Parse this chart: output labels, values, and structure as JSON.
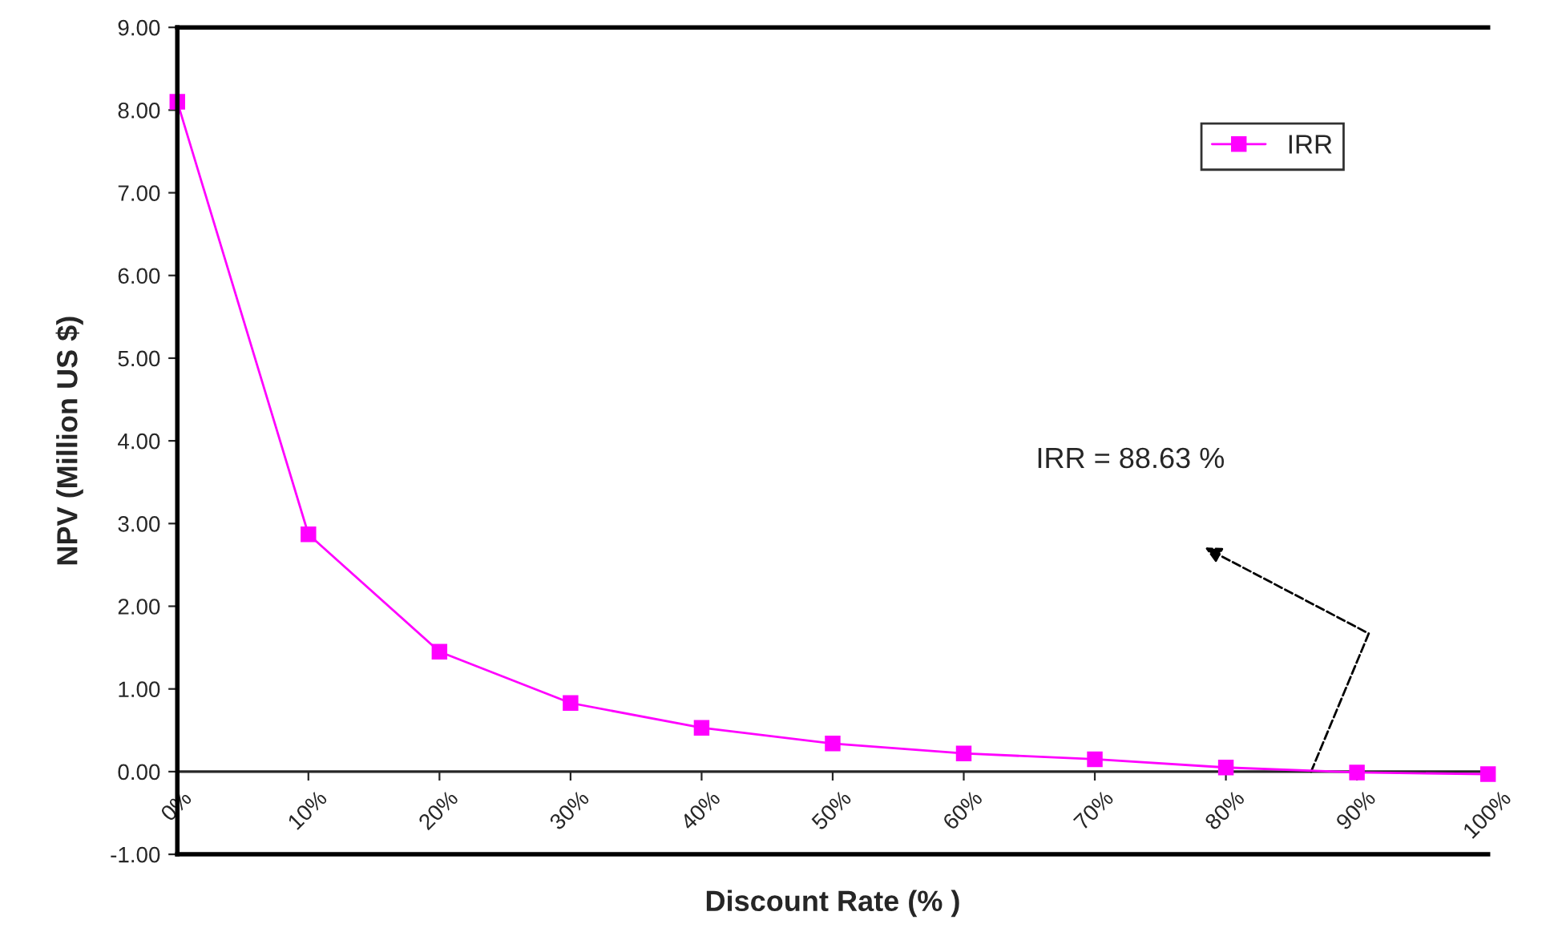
{
  "chart_data": {
    "type": "line",
    "xlabel": "Discount Rate (% )",
    "ylabel": "NPV (Million US $)",
    "categories": [
      "0%",
      "10%",
      "20%",
      "30%",
      "40%",
      "50%",
      "60%",
      "70%",
      "80%",
      "90%",
      "100%"
    ],
    "series": [
      {
        "name": "IRR",
        "color": "#ff00ff",
        "values": [
          8.1,
          2.87,
          1.45,
          0.83,
          0.53,
          0.34,
          0.22,
          0.15,
          0.05,
          -0.01,
          -0.03
        ]
      }
    ],
    "ylim": [
      -1,
      9
    ],
    "yticks": [
      {
        "value": -1,
        "label": "-1.00"
      },
      {
        "value": 0,
        "label": "0.00"
      },
      {
        "value": 1,
        "label": "1.00"
      },
      {
        "value": 2,
        "label": "2.00"
      },
      {
        "value": 3,
        "label": "3.00"
      },
      {
        "value": 4,
        "label": "4.00"
      },
      {
        "value": 5,
        "label": "5.00"
      },
      {
        "value": 6,
        "label": "6.00"
      },
      {
        "value": 7,
        "label": "7.00"
      },
      {
        "value": 8,
        "label": "8.00"
      },
      {
        "value": 9,
        "label": "9.00"
      }
    ],
    "annotations": [
      "IRR = 88.63 %"
    ],
    "marker": "square",
    "line_style": "solid",
    "legend": "top right"
  }
}
